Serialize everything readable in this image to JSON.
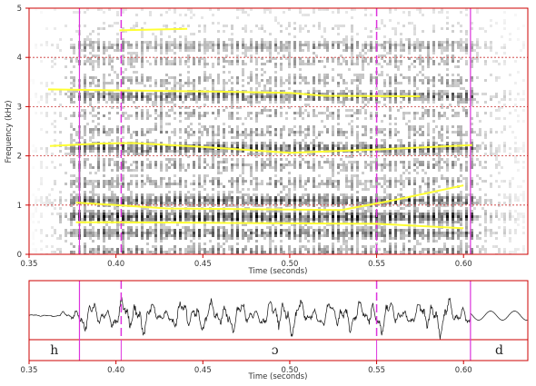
{
  "chart_data": [
    {
      "type": "spectrogram",
      "xlabel": "Time (seconds)",
      "ylabel": "Frequency (kHz)",
      "xlim": [
        0.35,
        0.637
      ],
      "ylim": [
        0,
        5
      ],
      "x_ticks": [
        "0.35",
        "0.40",
        "0.45",
        "0.50",
        "0.55",
        "0.60"
      ],
      "y_ticks": [
        "0",
        "1",
        "2",
        "3",
        "4",
        "5"
      ],
      "grid": "horizontal dashed, red",
      "frame_color": "#cc0000",
      "formant_color": "#ffff33",
      "boundary_color": "#dd33dd",
      "boundaries_solid": [
        0.379,
        0.604
      ],
      "boundaries_dashed": [
        0.403,
        0.55
      ],
      "series": [
        {
          "x": [
            0.377,
            0.4,
            0.45,
            0.5,
            0.55,
            0.6
          ],
          "y": [
            0.65,
            0.65,
            0.64,
            0.63,
            0.62,
            0.53
          ]
        },
        {
          "x": [
            0.377,
            0.4,
            0.43,
            0.5,
            0.53,
            0.56,
            0.6
          ],
          "y": [
            1.05,
            1.0,
            0.93,
            0.91,
            0.9,
            1.1,
            1.4
          ]
        },
        {
          "x": [
            0.362,
            0.39,
            0.41,
            0.45,
            0.5,
            0.55,
            0.605
          ],
          "y": [
            2.2,
            2.25,
            2.26,
            2.18,
            2.06,
            2.13,
            2.22
          ]
        },
        {
          "x": [
            0.361,
            0.4,
            0.45,
            0.5,
            0.52,
            0.575
          ],
          "y": [
            3.35,
            3.33,
            3.31,
            3.28,
            3.22,
            3.21
          ]
        },
        {
          "x": [
            0.402,
            0.441
          ],
          "y": [
            4.55,
            4.58
          ]
        }
      ]
    },
    {
      "type": "waveform",
      "xlabel": "Time (seconds)",
      "xlim": [
        0.35,
        0.637
      ],
      "x_ticks": [
        "0.35",
        "0.40",
        "0.45",
        "0.50",
        "0.55",
        "0.60"
      ],
      "segments": [
        {
          "label": "h",
          "start": 0.35,
          "end": 0.379
        },
        {
          "label": "ɔ",
          "start": 0.379,
          "end": 0.604
        },
        {
          "label": "d",
          "start": 0.604,
          "end": 0.637
        }
      ]
    }
  ]
}
